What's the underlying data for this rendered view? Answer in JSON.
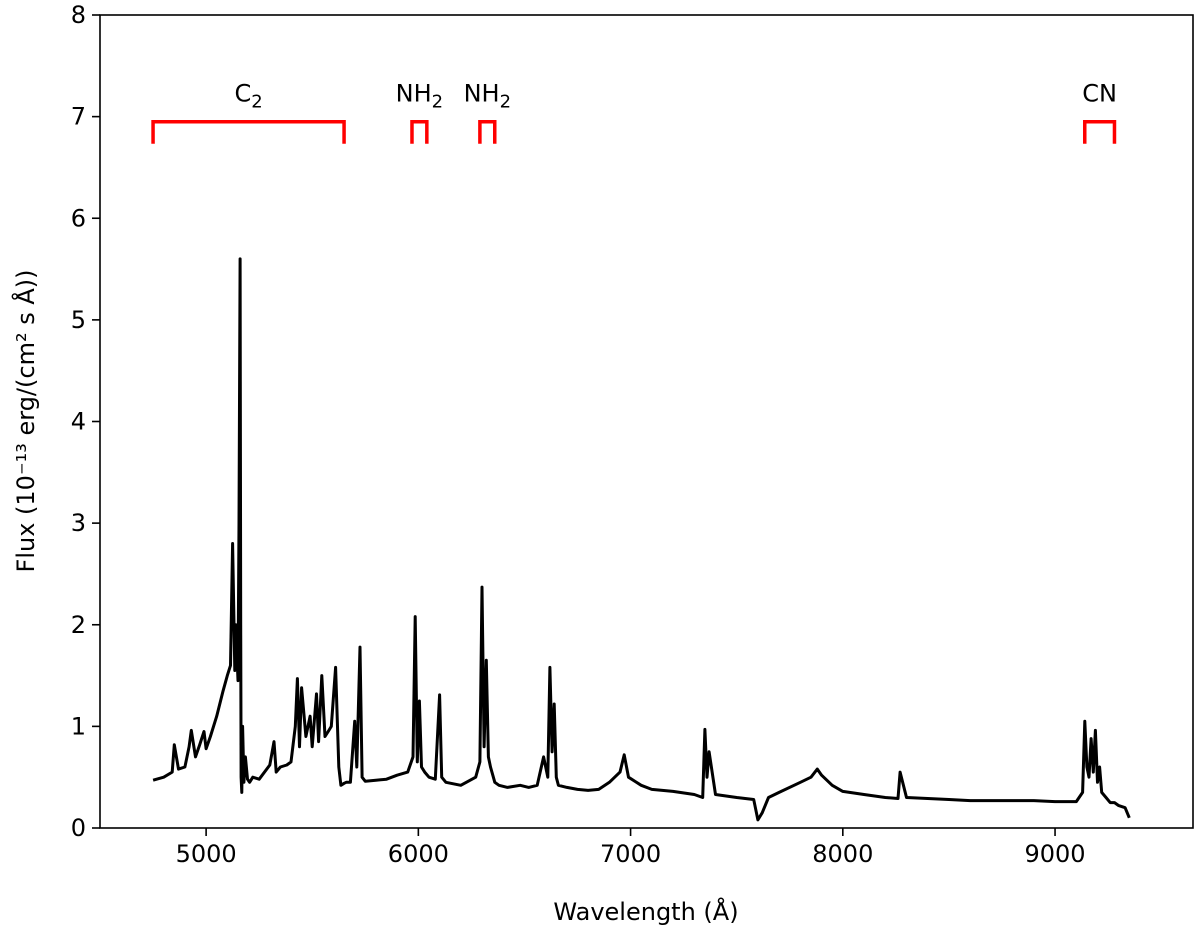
{
  "chart_data": {
    "type": "line",
    "title": "",
    "xlabel": "Wavelength (Å)",
    "ylabel": "Flux (10⁻¹³ erg/(cm² s Å))",
    "xlim": [
      4500,
      9650
    ],
    "ylim": [
      0,
      8
    ],
    "x_ticks": [
      5000,
      6000,
      7000,
      8000,
      9000
    ],
    "y_ticks": [
      0,
      1,
      2,
      3,
      4,
      5,
      6,
      7,
      8
    ],
    "grid": false,
    "legend": "none",
    "series": [
      {
        "color": "#000000",
        "x": [
          4750,
          4800,
          4840,
          4850,
          4870,
          4900,
          4920,
          4930,
          4950,
          4970,
          4990,
          5000,
          5020,
          5050,
          5080,
          5100,
          5115,
          5125,
          5135,
          5140,
          5150,
          5155,
          5160,
          5163,
          5165,
          5168,
          5172,
          5178,
          5185,
          5195,
          5205,
          5220,
          5250,
          5300,
          5320,
          5330,
          5350,
          5380,
          5400,
          5420,
          5430,
          5440,
          5450,
          5470,
          5490,
          5500,
          5520,
          5530,
          5545,
          5560,
          5575,
          5590,
          5610,
          5625,
          5635,
          5650,
          5660,
          5680,
          5700,
          5710,
          5725,
          5735,
          5750,
          5800,
          5850,
          5900,
          5950,
          5975,
          5985,
          5995,
          6005,
          6015,
          6030,
          6050,
          6080,
          6100,
          6110,
          6130,
          6200,
          6270,
          6290,
          6300,
          6310,
          6320,
          6330,
          6340,
          6360,
          6380,
          6420,
          6480,
          6520,
          6560,
          6590,
          6610,
          6620,
          6630,
          6640,
          6650,
          6660,
          6700,
          6750,
          6800,
          6850,
          6900,
          6950,
          6970,
          6990,
          7050,
          7100,
          7200,
          7300,
          7340,
          7350,
          7360,
          7370,
          7400,
          7500,
          7580,
          7600,
          7620,
          7650,
          7700,
          7800,
          7850,
          7880,
          7900,
          7950,
          8000,
          8100,
          8200,
          8260,
          8270,
          8300,
          8400,
          8500,
          8600,
          8700,
          8800,
          8900,
          9000,
          9100,
          9130,
          9140,
          9150,
          9160,
          9170,
          9180,
          9190,
          9200,
          9210,
          9220,
          9240,
          9260,
          9280,
          9300,
          9330,
          9350
        ],
        "values": [
          0.47,
          0.5,
          0.55,
          0.82,
          0.58,
          0.6,
          0.8,
          0.96,
          0.7,
          0.82,
          0.95,
          0.78,
          0.9,
          1.1,
          1.35,
          1.5,
          1.6,
          2.8,
          1.55,
          2.0,
          1.45,
          3.0,
          5.6,
          2.0,
          0.5,
          0.35,
          1.0,
          0.45,
          0.7,
          0.48,
          0.45,
          0.5,
          0.48,
          0.62,
          0.85,
          0.55,
          0.6,
          0.62,
          0.65,
          1.0,
          1.47,
          0.8,
          1.38,
          0.9,
          1.1,
          0.8,
          1.32,
          0.85,
          1.5,
          0.9,
          0.95,
          1.0,
          1.58,
          0.6,
          0.42,
          0.44,
          0.45,
          0.45,
          1.05,
          0.6,
          1.78,
          0.5,
          0.46,
          0.47,
          0.48,
          0.52,
          0.55,
          0.7,
          2.08,
          0.65,
          1.25,
          0.6,
          0.55,
          0.5,
          0.48,
          1.31,
          0.5,
          0.45,
          0.42,
          0.5,
          0.65,
          2.37,
          0.8,
          1.65,
          0.7,
          0.6,
          0.45,
          0.42,
          0.4,
          0.42,
          0.4,
          0.42,
          0.7,
          0.5,
          1.58,
          0.75,
          1.22,
          0.5,
          0.42,
          0.4,
          0.38,
          0.37,
          0.38,
          0.45,
          0.55,
          0.72,
          0.5,
          0.42,
          0.38,
          0.36,
          0.33,
          0.3,
          0.97,
          0.5,
          0.75,
          0.33,
          0.3,
          0.28,
          0.08,
          0.15,
          0.3,
          0.35,
          0.45,
          0.5,
          0.58,
          0.52,
          0.42,
          0.36,
          0.33,
          0.3,
          0.29,
          0.55,
          0.3,
          0.29,
          0.28,
          0.27,
          0.27,
          0.27,
          0.27,
          0.26,
          0.26,
          0.35,
          1.05,
          0.6,
          0.5,
          0.88,
          0.55,
          0.96,
          0.45,
          0.6,
          0.35,
          0.3,
          0.25,
          0.25,
          0.22,
          0.2,
          0.1
        ]
      }
    ],
    "annotations": [
      {
        "label": "C",
        "subscript": "2",
        "x_start": 4750,
        "x_end": 5650,
        "y": 6.95,
        "color": "#ff0000"
      },
      {
        "label": "NH",
        "subscript": "2",
        "x_start": 5970,
        "x_end": 6040,
        "y": 6.95,
        "color": "#ff0000"
      },
      {
        "label": "NH",
        "subscript": "2",
        "x_start": 6290,
        "x_end": 6360,
        "y": 6.95,
        "color": "#ff0000"
      },
      {
        "label": "CN",
        "subscript": "",
        "x_start": 9140,
        "x_end": 9280,
        "y": 6.95,
        "color": "#ff0000"
      }
    ]
  }
}
